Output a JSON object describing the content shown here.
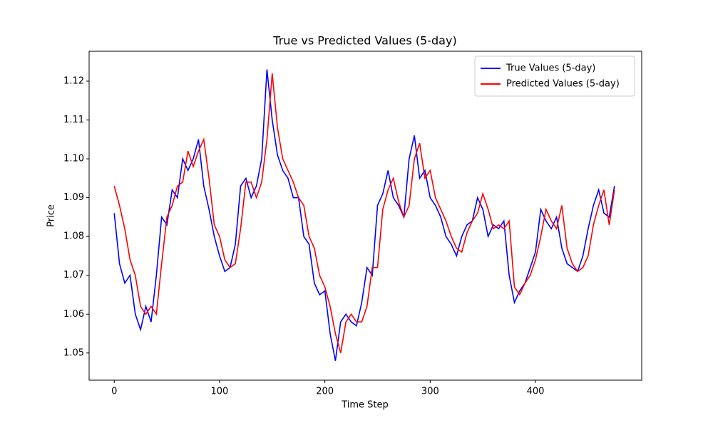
{
  "chart_data": {
    "type": "line",
    "title": "True vs Predicted Values (5-day)",
    "x_label": "Time Step",
    "y_label": "Price",
    "x": [
      0,
      5,
      10,
      15,
      20,
      25,
      30,
      35,
      40,
      45,
      50,
      55,
      60,
      65,
      70,
      75,
      80,
      85,
      90,
      95,
      100,
      105,
      110,
      115,
      120,
      125,
      130,
      135,
      140,
      145,
      150,
      155,
      160,
      165,
      170,
      175,
      180,
      185,
      190,
      195,
      200,
      205,
      210,
      215,
      220,
      225,
      230,
      235,
      240,
      245,
      250,
      255,
      260,
      265,
      270,
      275,
      280,
      285,
      290,
      295,
      300,
      305,
      310,
      315,
      320,
      325,
      330,
      335,
      340,
      345,
      350,
      355,
      360,
      365,
      370,
      375,
      380,
      385,
      390,
      395,
      400,
      405,
      410,
      415,
      420,
      425,
      430,
      435,
      440,
      445,
      450,
      455,
      460,
      465,
      470,
      475
    ],
    "series": [
      {
        "name": "True Values (5-day)",
        "color": "#0000ff",
        "values": [
          1.086,
          1.073,
          1.068,
          1.07,
          1.06,
          1.056,
          1.062,
          1.058,
          1.07,
          1.085,
          1.083,
          1.092,
          1.09,
          1.1,
          1.097,
          1.1,
          1.105,
          1.093,
          1.087,
          1.08,
          1.075,
          1.071,
          1.072,
          1.078,
          1.093,
          1.095,
          1.09,
          1.093,
          1.1,
          1.123,
          1.11,
          1.101,
          1.097,
          1.095,
          1.09,
          1.09,
          1.08,
          1.078,
          1.068,
          1.065,
          1.066,
          1.055,
          1.048,
          1.058,
          1.06,
          1.058,
          1.057,
          1.063,
          1.072,
          1.07,
          1.088,
          1.091,
          1.097,
          1.09,
          1.088,
          1.085,
          1.1,
          1.106,
          1.095,
          1.097,
          1.09,
          1.088,
          1.085,
          1.08,
          1.078,
          1.075,
          1.08,
          1.083,
          1.084,
          1.09,
          1.087,
          1.08,
          1.083,
          1.082,
          1.084,
          1.07,
          1.063,
          1.066,
          1.068,
          1.072,
          1.076,
          1.087,
          1.084,
          1.082,
          1.085,
          1.077,
          1.073,
          1.072,
          1.071,
          1.075,
          1.082,
          1.088,
          1.092,
          1.086,
          1.085,
          1.093
        ]
      },
      {
        "name": "Predicted Values (5-day)",
        "color": "#ff0000",
        "values": [
          1.093,
          1.088,
          1.082,
          1.074,
          1.07,
          1.062,
          1.06,
          1.062,
          1.06,
          1.073,
          1.085,
          1.088,
          1.093,
          1.094,
          1.102,
          1.098,
          1.102,
          1.105,
          1.095,
          1.083,
          1.08,
          1.074,
          1.072,
          1.073,
          1.082,
          1.094,
          1.094,
          1.09,
          1.094,
          1.105,
          1.122,
          1.108,
          1.1,
          1.097,
          1.094,
          1.09,
          1.088,
          1.08,
          1.077,
          1.07,
          1.067,
          1.062,
          1.055,
          1.05,
          1.058,
          1.06,
          1.058,
          1.058,
          1.062,
          1.072,
          1.072,
          1.087,
          1.092,
          1.095,
          1.089,
          1.085,
          1.088,
          1.1,
          1.104,
          1.095,
          1.097,
          1.09,
          1.087,
          1.084,
          1.08,
          1.077,
          1.076,
          1.081,
          1.084,
          1.086,
          1.091,
          1.087,
          1.082,
          1.083,
          1.082,
          1.084,
          1.067,
          1.065,
          1.068,
          1.07,
          1.074,
          1.08,
          1.087,
          1.084,
          1.082,
          1.088,
          1.077,
          1.073,
          1.071,
          1.072,
          1.075,
          1.083,
          1.088,
          1.092,
          1.083,
          1.092
        ]
      }
    ],
    "xlim": [
      -23.85,
      500.85
    ],
    "ylim": [
      1.043,
      1.1277
    ],
    "xticks": [
      0,
      100,
      200,
      300,
      400
    ],
    "yticks": [
      1.05,
      1.06,
      1.07,
      1.08,
      1.09,
      {
        "value": 1.1,
        "label": "1.10"
      },
      1.11,
      1.12
    ],
    "legend": "upper right"
  }
}
